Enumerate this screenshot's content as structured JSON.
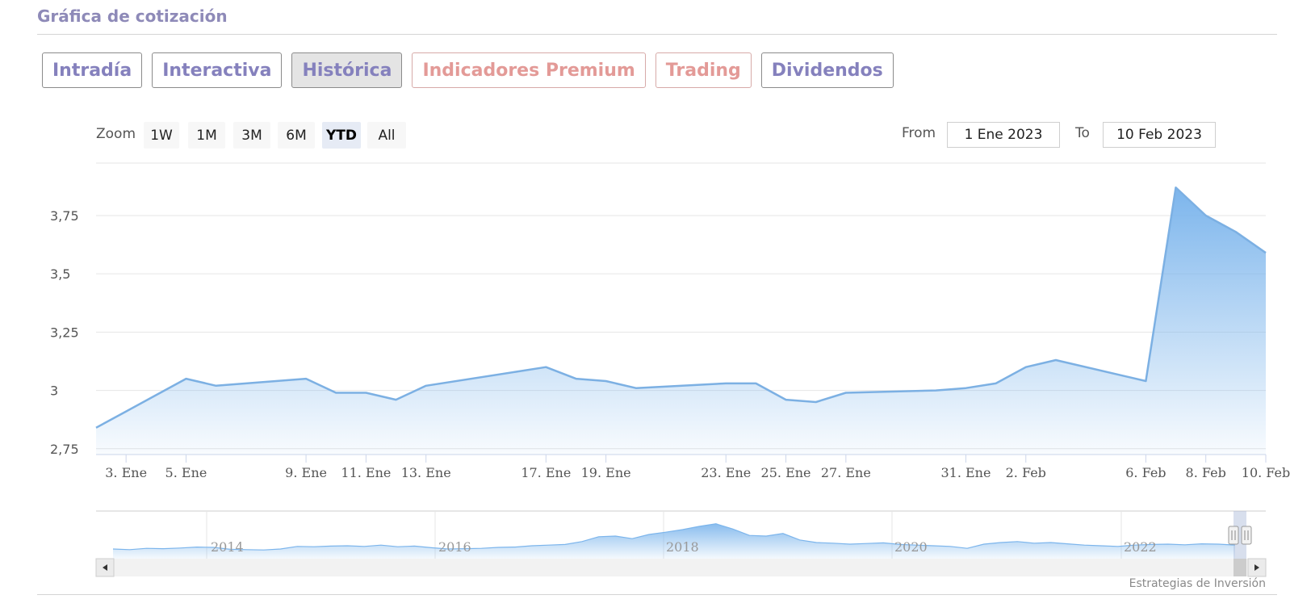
{
  "page": {
    "title": "Gráfica de cotización",
    "tabs": [
      {
        "label": "Intradía",
        "style": "purple"
      },
      {
        "label": "Interactiva",
        "style": "purple"
      },
      {
        "label": "Histórica",
        "style": "active"
      },
      {
        "label": "Indicadores Premium",
        "style": "red"
      },
      {
        "label": "Trading",
        "style": "red"
      },
      {
        "label": "Dividendos",
        "style": "purple"
      }
    ],
    "zoom_label": "Zoom",
    "zoom_buttons": [
      "1W",
      "1M",
      "3M",
      "6M",
      "YTD",
      "All"
    ],
    "zoom_selected": "YTD",
    "from_label": "From",
    "from_value": "1 Ene 2023",
    "to_label": "To",
    "to_value": "10 Feb 2023",
    "credit": "Estrategias de Inversión"
  },
  "colors": {
    "line": "#7cb0e3",
    "area_top": "#7cb5ec",
    "tab_purple": "#8581bd",
    "tab_red": "#e39a97"
  },
  "chart_data": {
    "type": "area",
    "yticks": [
      2.75,
      3,
      3.25,
      3.5,
      3.75
    ],
    "ytick_labels": [
      "2,75",
      "3",
      "3,25",
      "3,5",
      "3,75"
    ],
    "ylim": [
      2.725,
      3.975
    ],
    "xlim": [
      "2023-01-02",
      "2023-02-10"
    ],
    "xticks": [
      {
        "date": "2023-01-03",
        "label": "3. Ene"
      },
      {
        "date": "2023-01-05",
        "label": "5. Ene"
      },
      {
        "date": "2023-01-09",
        "label": "9. Ene"
      },
      {
        "date": "2023-01-11",
        "label": "11. Ene"
      },
      {
        "date": "2023-01-13",
        "label": "13. Ene"
      },
      {
        "date": "2023-01-17",
        "label": "17. Ene"
      },
      {
        "date": "2023-01-19",
        "label": "19. Ene"
      },
      {
        "date": "2023-01-23",
        "label": "23. Ene"
      },
      {
        "date": "2023-01-25",
        "label": "25. Ene"
      },
      {
        "date": "2023-01-27",
        "label": "27. Ene"
      },
      {
        "date": "2023-01-31",
        "label": "31. Ene"
      },
      {
        "date": "2023-02-02",
        "label": "2. Feb"
      },
      {
        "date": "2023-02-06",
        "label": "6. Feb"
      },
      {
        "date": "2023-02-08",
        "label": "8. Feb"
      },
      {
        "date": "2023-02-10",
        "label": "10. Feb"
      }
    ],
    "x": [
      "2023-01-02",
      "2023-01-03",
      "2023-01-04",
      "2023-01-05",
      "2023-01-06",
      "2023-01-09",
      "2023-01-10",
      "2023-01-11",
      "2023-01-12",
      "2023-01-13",
      "2023-01-16",
      "2023-01-17",
      "2023-01-18",
      "2023-01-19",
      "2023-01-20",
      "2023-01-23",
      "2023-01-24",
      "2023-01-25",
      "2023-01-26",
      "2023-01-27",
      "2023-01-30",
      "2023-01-31",
      "2023-02-01",
      "2023-02-02",
      "2023-02-03",
      "2023-02-06",
      "2023-02-07",
      "2023-02-08",
      "2023-02-09",
      "2023-02-10"
    ],
    "series": [
      {
        "values": [
          2.84,
          2.91,
          2.98,
          3.05,
          3.02,
          3.05,
          2.99,
          2.99,
          2.96,
          3.02,
          3.08,
          3.1,
          3.05,
          3.04,
          3.01,
          3.03,
          3.03,
          2.96,
          2.95,
          2.99,
          3.0,
          3.01,
          3.03,
          3.1,
          3.13,
          3.04,
          3.87,
          3.75,
          3.68,
          3.59
        ]
      }
    ],
    "navigator": {
      "year_labels": [
        "2014",
        "2016",
        "2018",
        "2020",
        "2022"
      ],
      "values": [
        0.1,
        0.08,
        0.12,
        0.11,
        0.13,
        0.16,
        0.15,
        0.09,
        0.08,
        0.07,
        0.1,
        0.18,
        0.17,
        0.19,
        0.2,
        0.18,
        0.22,
        0.17,
        0.19,
        0.14,
        0.1,
        0.11,
        0.12,
        0.15,
        0.16,
        0.2,
        0.22,
        0.24,
        0.33,
        0.48,
        0.5,
        0.42,
        0.55,
        0.62,
        0.7,
        0.8,
        0.88,
        0.72,
        0.52,
        0.5,
        0.58,
        0.38,
        0.3,
        0.28,
        0.25,
        0.27,
        0.29,
        0.24,
        0.22,
        0.2,
        0.18,
        0.12,
        0.25,
        0.3,
        0.33,
        0.28,
        0.3,
        0.26,
        0.22,
        0.2,
        0.18,
        0.22,
        0.24,
        0.25,
        0.23,
        0.26,
        0.25,
        0.22
      ]
    }
  }
}
